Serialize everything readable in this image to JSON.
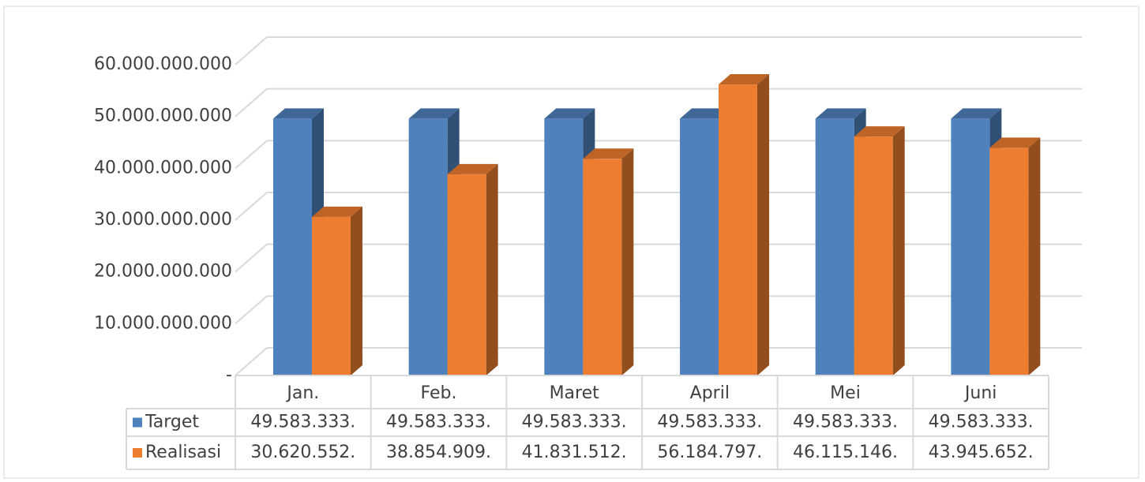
{
  "chart_data": {
    "type": "bar3d",
    "categories": [
      "Jan.",
      "Feb.",
      "Maret",
      "April",
      "Mei",
      "Juni"
    ],
    "series": [
      {
        "name": "Target",
        "color": "#4f81bd",
        "values": [
          49583333333,
          49583333333,
          49583333333,
          49583333333,
          49583333333,
          49583333333
        ],
        "value_labels": [
          "49.583.333.",
          "49.583.333.",
          "49.583.333.",
          "49.583.333.",
          "49.583.333.",
          "49.583.333."
        ]
      },
      {
        "name": "Realisasi",
        "color": "#ed7d31",
        "values": [
          30620552000,
          38854909000,
          41831512000,
          56184797000,
          46115146000,
          43945652000
        ],
        "value_labels": [
          "30.620.552.",
          "38.854.909.",
          "41.831.512.",
          "56.184.797.",
          "46.115.146.",
          "43.945.652."
        ]
      }
    ],
    "ylim": [
      0,
      60000000000
    ],
    "yticks": [
      {
        "value": 0,
        "label": "-"
      },
      {
        "value": 10000000000,
        "label": "10.000.000.000"
      },
      {
        "value": 20000000000,
        "label": "20.000.000.000"
      },
      {
        "value": 30000000000,
        "label": "30.000.000.000"
      },
      {
        "value": 40000000000,
        "label": "40.000.000.000"
      },
      {
        "value": 50000000000,
        "label": "50.000.000.000"
      },
      {
        "value": 60000000000,
        "label": "60.000.000.000"
      }
    ],
    "grid": true
  }
}
